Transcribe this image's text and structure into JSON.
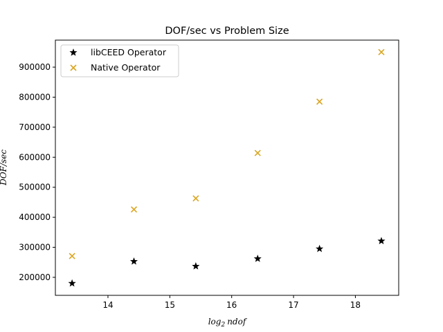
{
  "chart_data": {
    "type": "scatter",
    "title": "DOF/sec vs Problem Size",
    "xlabel_prefix": "log",
    "xlabel_sub": "2",
    "xlabel_suffix": "ndof",
    "ylabel": "DOF/sec",
    "xlim": [
      13.15,
      18.7
    ],
    "ylim": [
      140000,
      990000
    ],
    "x_ticks": [
      14,
      15,
      16,
      17,
      18
    ],
    "y_ticks": [
      200000,
      300000,
      400000,
      500000,
      600000,
      700000,
      800000,
      900000
    ],
    "legend_position": "upper-left",
    "series": [
      {
        "name": "libCEED Operator",
        "marker": "star",
        "color": "#000000",
        "x": [
          13.42,
          14.42,
          15.42,
          16.42,
          17.42,
          18.42
        ],
        "y": [
          180000,
          253000,
          237000,
          262000,
          295000,
          321000
        ]
      },
      {
        "name": "Native Operator",
        "marker": "x",
        "color": "#DAA520",
        "x": [
          13.42,
          14.42,
          15.42,
          16.42,
          17.42,
          18.42
        ],
        "y": [
          271000,
          426000,
          463000,
          614000,
          785000,
          950000
        ]
      }
    ]
  }
}
